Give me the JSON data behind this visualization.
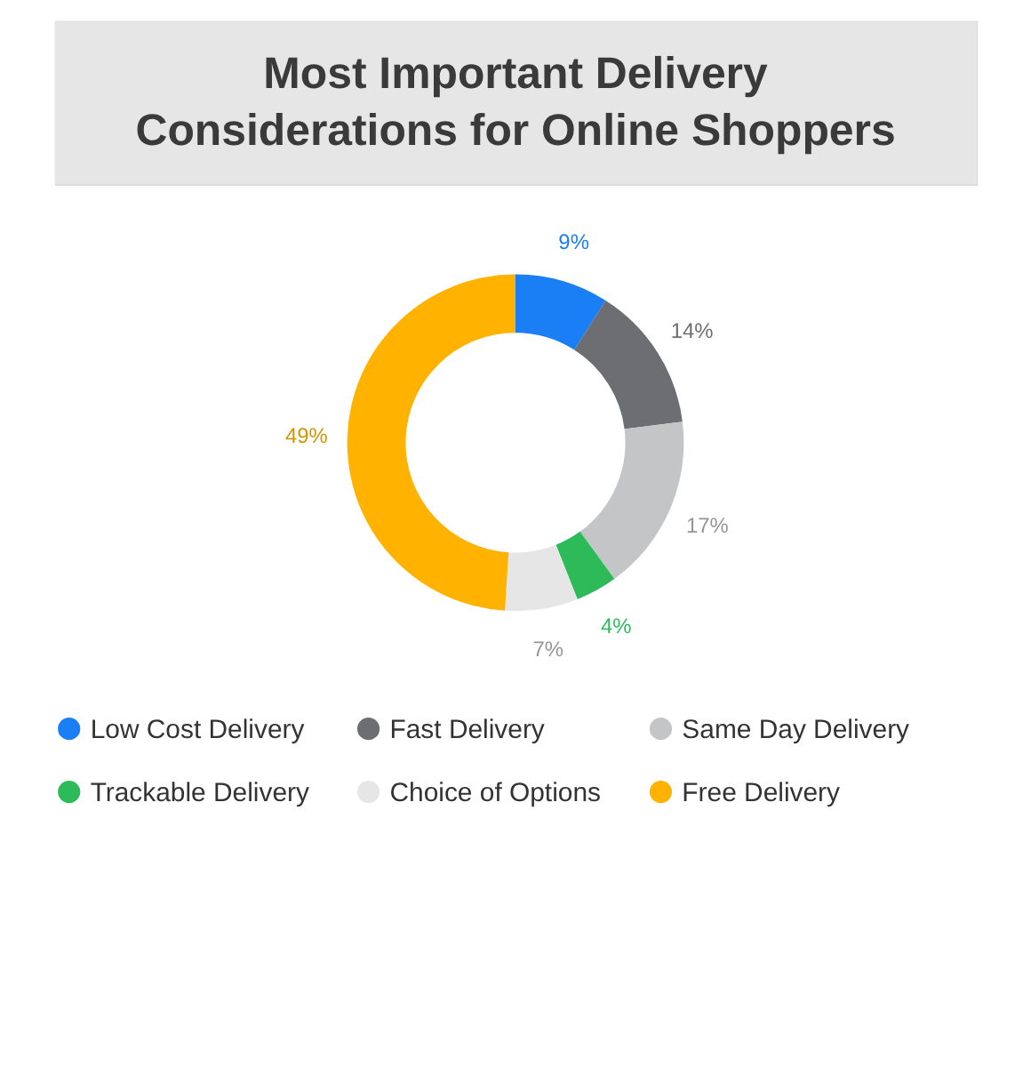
{
  "chart_data": {
    "type": "donut",
    "title": "Most Important Delivery Considerations for Online Shoppers",
    "categories": [
      "Low Cost Delivery",
      "Fast Delivery",
      "Same Day Delivery",
      "Trackable Delivery",
      "Choice of Options",
      "Free Delivery"
    ],
    "values": [
      9,
      14,
      17,
      4,
      7,
      49
    ],
    "value_labels": [
      "9%",
      "14%",
      "17%",
      "4%",
      "7%",
      "49%"
    ],
    "colors": [
      "#1a7ef5",
      "#6d6e71",
      "#c4c5c7",
      "#2dbb5a",
      "#e6e6e6",
      "#ffb300"
    ],
    "legend": "bottom"
  }
}
